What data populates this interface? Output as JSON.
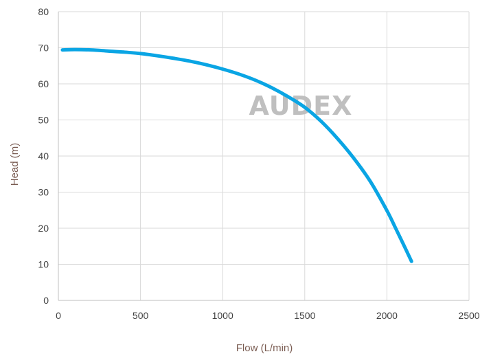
{
  "chart_data": {
    "type": "line",
    "title": "",
    "xlabel": "Flow (L/min)",
    "ylabel": "Head (m)",
    "xlim": [
      0,
      2500
    ],
    "ylim": [
      0,
      80
    ],
    "x_ticks": [
      "0",
      "500",
      "1000",
      "1500",
      "2000",
      "2500"
    ],
    "y_ticks": [
      "0",
      "10",
      "20",
      "30",
      "40",
      "50",
      "60",
      "70",
      "80"
    ],
    "grid": true,
    "legend": "none",
    "watermark": "AUDEX",
    "series": [
      {
        "color": "#0aa5e4",
        "x": [
          25,
          100,
          200,
          300,
          400,
          500,
          600,
          700,
          800,
          900,
          1000,
          1100,
          1200,
          1300,
          1400,
          1500,
          1600,
          1700,
          1800,
          1900,
          2000,
          2050,
          2100,
          2150
        ],
        "y": [
          69.4,
          69.5,
          69.4,
          69.1,
          68.8,
          68.4,
          67.8,
          67.1,
          66.3,
          65.3,
          64.1,
          62.7,
          61.0,
          58.9,
          56.4,
          53.5,
          49.6,
          44.8,
          39.3,
          32.9,
          24.9,
          20.3,
          15.6,
          10.8
        ]
      }
    ]
  }
}
